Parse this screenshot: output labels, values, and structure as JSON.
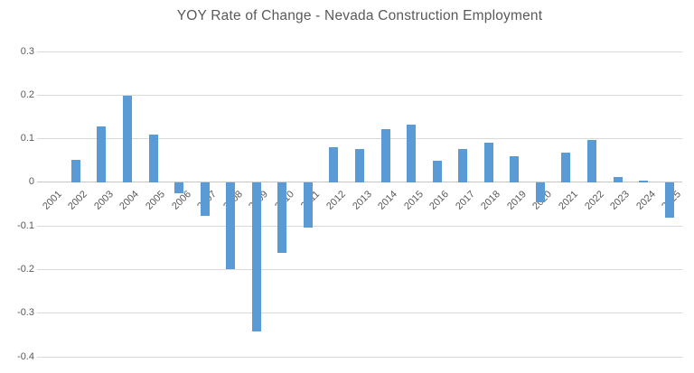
{
  "chart": {
    "title": "YOY Rate of Change - Nevada Construction Employment",
    "colors": {
      "bar": "#5B9BD5",
      "grid": "#D9D9D9",
      "zero_axis": "#C6C6C6",
      "axis_text": "#595959",
      "title_text": "#595959",
      "background": "#FFFFFF"
    }
  },
  "chart_data": {
    "type": "bar",
    "title": "YOY Rate of Change - Nevada Construction Employment",
    "categories": [
      "2001",
      "2002",
      "2003",
      "2004",
      "2005",
      "2006",
      "2007",
      "2008",
      "2009",
      "2010",
      "2011",
      "2012",
      "2013",
      "2014",
      "2015",
      "2016",
      "2017",
      "2018",
      "2019",
      "2020",
      "2021",
      "2022",
      "2023",
      "2024",
      "2025"
    ],
    "values": [
      0,
      0.052,
      0.128,
      0.199,
      0.11,
      -0.025,
      -0.077,
      -0.2,
      -0.343,
      -0.162,
      -0.103,
      0.08,
      0.077,
      0.121,
      0.133,
      0.049,
      0.077,
      0.091,
      0.06,
      -0.046,
      0.069,
      0.097,
      0.013,
      0.003,
      -0.082
    ],
    "xlabel": "",
    "ylabel": "",
    "ylim": [
      -0.4,
      0.3
    ],
    "ytick_labels": [
      "0.3",
      "0.2",
      "0.1",
      "0",
      "-0.1",
      "-0.2",
      "-0.3",
      "-0.4"
    ],
    "grid": true,
    "legend": false,
    "x_label_rotation_deg": -45,
    "bar_color": "#5B9BD5"
  }
}
